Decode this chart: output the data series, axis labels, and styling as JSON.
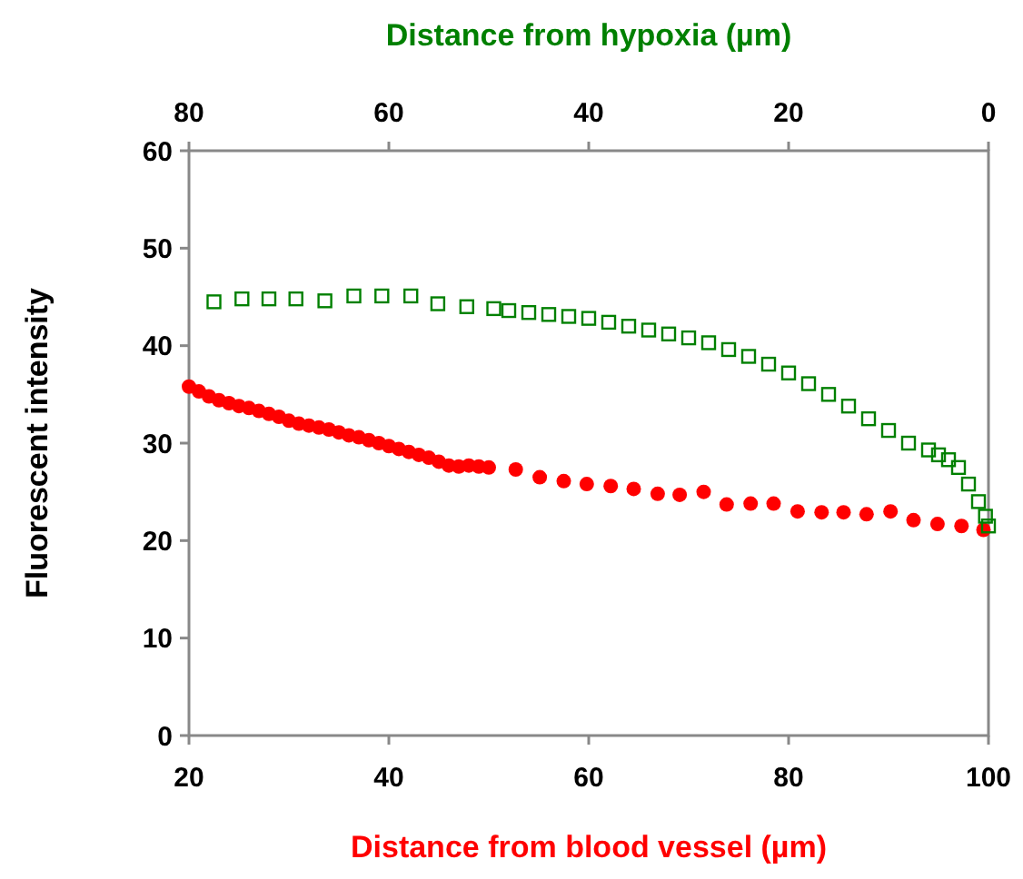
{
  "chart_data": {
    "type": "scatter",
    "xlabel": "Distance from blood vessel (µm)",
    "x2label": "Distance from hypoxia (µm)",
    "ylabel": "Fluorescent intensity",
    "xlim": [
      20,
      100
    ],
    "xticks": [
      20,
      40,
      60,
      80,
      100
    ],
    "x2lim": [
      80,
      0
    ],
    "x2ticks": [
      80,
      60,
      40,
      20,
      0
    ],
    "ylim": [
      0,
      60
    ],
    "yticks": [
      0,
      10,
      20,
      30,
      40,
      50,
      60
    ],
    "grid": false,
    "series": [
      {
        "color": "#ff0000",
        "marker": "circle",
        "x": [
          20,
          21,
          22,
          23,
          24,
          25,
          26,
          27,
          28,
          29,
          30,
          31,
          32,
          33,
          34,
          35,
          36,
          37,
          38,
          39,
          40,
          41,
          42,
          43,
          44,
          45,
          46,
          47,
          48,
          49,
          50,
          52.7,
          55.1,
          57.5,
          59.8,
          62.2,
          64.5,
          66.9,
          69.1,
          71.5,
          73.8,
          76.2,
          78.5,
          80.9,
          83.3,
          85.5,
          87.8,
          90.2,
          92.5,
          94.9,
          97.3,
          99.5
        ],
        "values": [
          35.8,
          35.3,
          34.8,
          34.4,
          34.1,
          33.8,
          33.6,
          33.3,
          33,
          32.7,
          32.3,
          32,
          31.8,
          31.6,
          31.4,
          31.1,
          30.8,
          30.6,
          30.3,
          30,
          29.7,
          29.4,
          29.1,
          28.8,
          28.5,
          28.1,
          27.7,
          27.6,
          27.7,
          27.6,
          27.5,
          27.3,
          26.5,
          26.1,
          25.8,
          25.6,
          25.3,
          24.8,
          24.7,
          25.0,
          23.7,
          23.8,
          23.8,
          23.0,
          22.9,
          22.9,
          22.7,
          23.0,
          22.1,
          21.7,
          21.5,
          21.1
        ]
      },
      {
        "color": "#008000",
        "marker": "square",
        "axis": "x2",
        "x": [
          77.5,
          74.7,
          72,
          69.3,
          66.4,
          63.5,
          60.7,
          57.8,
          55.1,
          52.2,
          49.5,
          48,
          46,
          44,
          42,
          40,
          38,
          36,
          34,
          32,
          30,
          28,
          26,
          24,
          22,
          20,
          18,
          16,
          14,
          12,
          10,
          8,
          6,
          5,
          4,
          3,
          2,
          1,
          0.3,
          0
        ],
        "values": [
          44.5,
          44.8,
          44.8,
          44.8,
          44.6,
          45.1,
          45.1,
          45.1,
          44.3,
          44.0,
          43.8,
          43.6,
          43.4,
          43.2,
          43.0,
          42.8,
          42.4,
          42.0,
          41.6,
          41.2,
          40.8,
          40.3,
          39.6,
          38.9,
          38.1,
          37.2,
          36.1,
          35.0,
          33.8,
          32.5,
          31.3,
          30.0,
          29.3,
          28.8,
          28.3,
          27.5,
          25.8,
          24.0,
          22.5,
          21.5
        ]
      }
    ]
  }
}
